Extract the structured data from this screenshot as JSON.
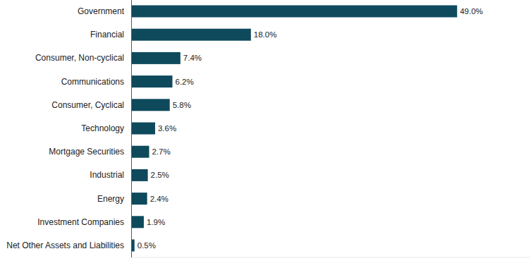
{
  "chart_data": {
    "type": "bar",
    "orientation": "horizontal",
    "categories": [
      "Government",
      "Financial",
      "Consumer, Non-cyclical",
      "Communications",
      "Consumer, Cyclical",
      "Technology",
      "Mortgage Securities",
      "Industrial",
      "Energy",
      "Investment Companies",
      "Net Other Assets and Liabilities"
    ],
    "values": [
      49.0,
      18.0,
      7.4,
      6.2,
      5.8,
      3.6,
      2.7,
      2.5,
      2.4,
      1.9,
      0.5
    ],
    "value_labels": [
      "49.0%",
      "18.0%",
      "7.4%",
      "6.2%",
      "5.8%",
      "3.6%",
      "2.7%",
      "2.5%",
      "2.4%",
      "1.9%",
      "0.5%"
    ],
    "color": "#0e4a5c",
    "xlim": [
      0,
      60
    ],
    "grid": false,
    "data_labels": true,
    "tick_labels": "y"
  }
}
